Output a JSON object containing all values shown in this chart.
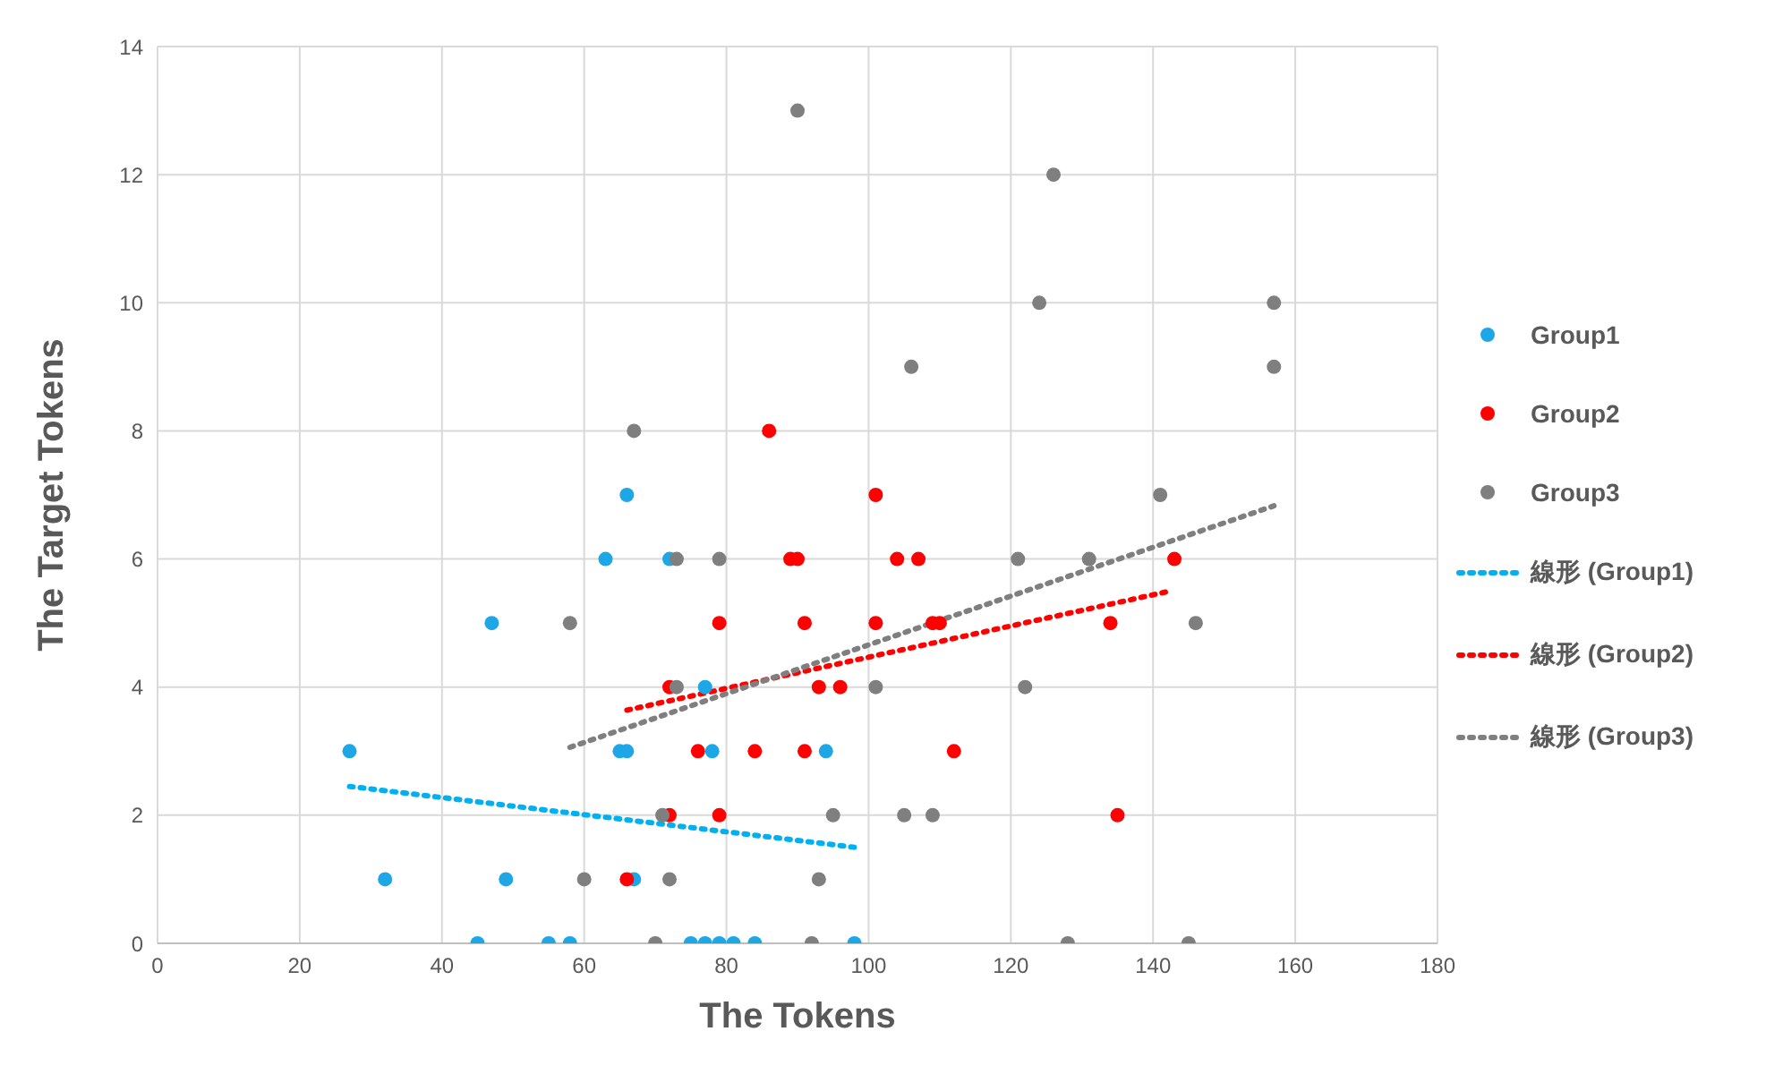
{
  "chart_data": {
    "type": "scatter",
    "xlabel": "The Tokens",
    "ylabel": "The Target Tokens",
    "xlim": [
      0,
      180
    ],
    "xticks": [
      0,
      20,
      40,
      60,
      80,
      100,
      120,
      140,
      160,
      180
    ],
    "ylim": [
      0,
      14
    ],
    "yticks": [
      0,
      2,
      4,
      6,
      8,
      10,
      12,
      14
    ],
    "grid": true,
    "legend": "right",
    "marker": "circle",
    "series": [
      {
        "name": "Group1",
        "color": "#1ea7e6",
        "x": [
          27,
          32,
          47,
          49,
          45,
          55,
          58,
          63,
          66,
          65,
          66,
          67,
          72,
          75,
          77,
          77,
          78,
          79,
          81,
          84,
          94,
          98
        ],
        "values": [
          3,
          1,
          5,
          1,
          0,
          0,
          0,
          6,
          7,
          3,
          3,
          1,
          6,
          0,
          4,
          0,
          3,
          0,
          0,
          0,
          3,
          0
        ]
      },
      {
        "name": "Group2",
        "color": "#ff0000",
        "x": [
          86,
          101,
          89,
          90,
          104,
          107,
          79,
          91,
          101,
          109,
          110,
          72,
          93,
          96,
          76,
          84,
          91,
          112,
          72,
          79,
          66,
          143,
          134,
          135
        ],
        "values": [
          8,
          7,
          6,
          6,
          6,
          6,
          5,
          5,
          5,
          5,
          5,
          4,
          4,
          4,
          3,
          3,
          3,
          3,
          2,
          2,
          1,
          6,
          5,
          2
        ]
      },
      {
        "name": "Group3",
        "color": "#7f7f7f",
        "x": [
          90,
          126,
          124,
          157,
          157,
          106,
          67,
          141,
          73,
          79,
          121,
          131,
          58,
          146,
          73,
          101,
          122,
          71,
          95,
          105,
          109,
          60,
          72,
          93,
          70,
          92,
          128,
          145
        ],
        "values": [
          13,
          12,
          10,
          10,
          9,
          9,
          8,
          7,
          6,
          6,
          6,
          6,
          5,
          5,
          4,
          4,
          4,
          2,
          2,
          2,
          2,
          1,
          1,
          1,
          0,
          0,
          0,
          0
        ]
      },
      {
        "name": "線形 (Group1)",
        "type": "line",
        "line_style": "dotted",
        "marker": "none",
        "color": "#00b0f0",
        "x": [
          27,
          98
        ],
        "values": [
          2.45,
          1.5
        ]
      },
      {
        "name": "線形 (Group2)",
        "type": "line",
        "line_style": "dotted",
        "marker": "none",
        "color": "#ff0000",
        "x": [
          66,
          142
        ],
        "values": [
          3.64,
          5.49
        ]
      },
      {
        "name": "線形 (Group3)",
        "type": "line",
        "line_style": "dotted",
        "marker": "none",
        "color": "#7f7f7f",
        "x": [
          58,
          157
        ],
        "values": [
          3.06,
          6.83
        ]
      }
    ]
  }
}
